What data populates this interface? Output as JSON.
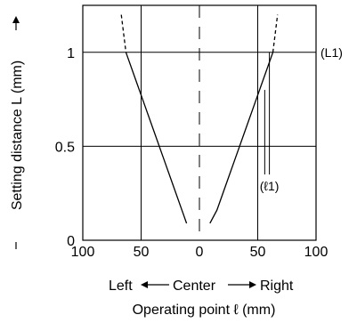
{
  "chart_data": {
    "type": "line",
    "ylabel": "Setting distance L (mm)",
    "xlabel": "Operating point ℓ (mm)",
    "x_direction": {
      "left": "Left",
      "center": "Center",
      "right": "Right"
    },
    "xlim": [
      -100,
      100
    ],
    "ylim": [
      0,
      1.25
    ],
    "x_ticks": [
      {
        "value": -100,
        "label": "100"
      },
      {
        "value": -50,
        "label": "50"
      },
      {
        "value": 0,
        "label": "0"
      },
      {
        "value": 50,
        "label": "50"
      },
      {
        "value": 100,
        "label": "100"
      }
    ],
    "y_ticks": [
      {
        "value": 0,
        "label": "0"
      },
      {
        "value": 0.5,
        "label": "0.5"
      },
      {
        "value": 1,
        "label": "1"
      }
    ],
    "grid": true,
    "series": [
      {
        "side": "left",
        "solid": {
          "x": [
            -63,
            -55,
            -47,
            -39,
            -31,
            -23,
            -15,
            -11
          ],
          "y": [
            1.0,
            0.86,
            0.72,
            0.58,
            0.44,
            0.3,
            0.16,
            0.09
          ]
        },
        "dashed": {
          "x": [
            -67,
            -63
          ],
          "y": [
            1.2,
            1.0
          ]
        }
      },
      {
        "side": "right",
        "solid": {
          "x": [
            9,
            15,
            23,
            31,
            39,
            47,
            55,
            63
          ],
          "y": [
            0.09,
            0.16,
            0.3,
            0.44,
            0.58,
            0.72,
            0.86,
            1.0
          ]
        },
        "dashed": {
          "x": [
            63,
            67
          ],
          "y": [
            1.0,
            1.2
          ]
        }
      }
    ],
    "annotations": [
      {
        "label": "(L1)",
        "y": 1.0
      },
      {
        "label": "(ℓ1)",
        "x": 60,
        "y": 0.35
      }
    ]
  }
}
